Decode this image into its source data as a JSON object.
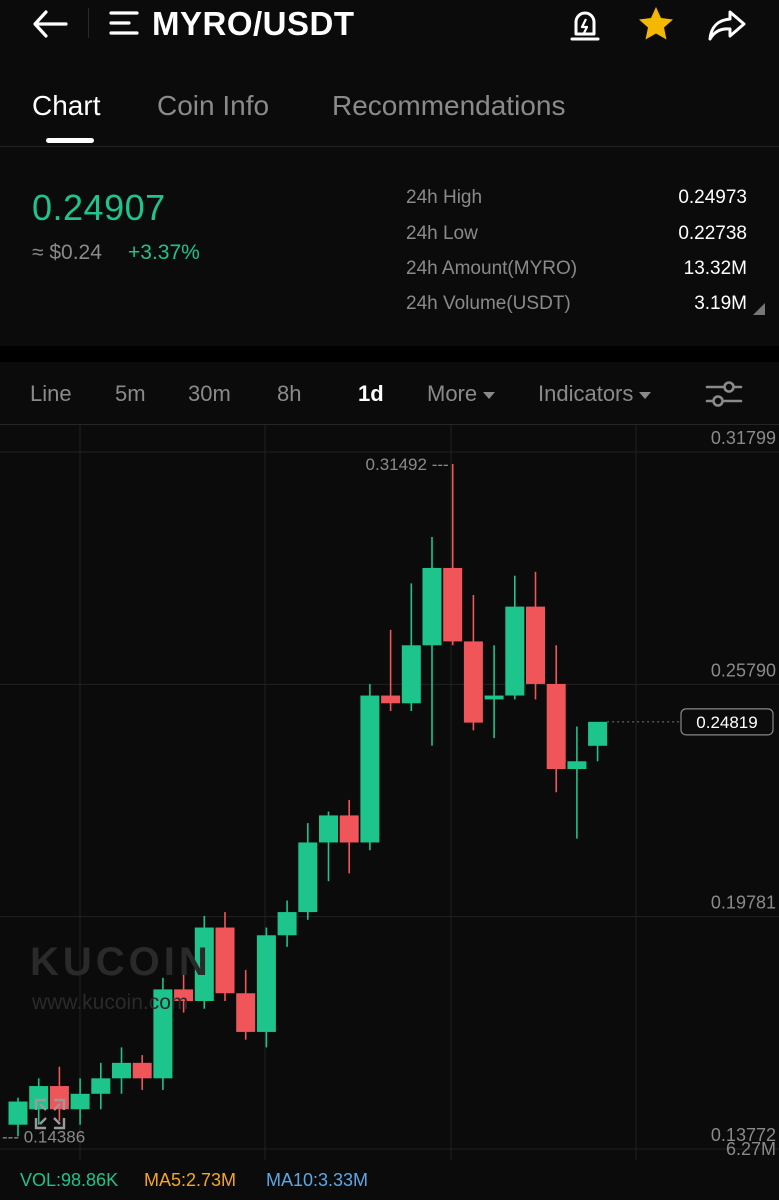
{
  "header": {
    "pair": "MYRO/USDT",
    "icons": {
      "back": "back-arrow-icon",
      "menu": "menu-icon",
      "alert": "price-alert-icon",
      "favorite": "star-icon",
      "share": "share-icon"
    },
    "favorite_color": "#f5b800"
  },
  "tabs": [
    {
      "label": "Chart",
      "active": true
    },
    {
      "label": "Coin Info",
      "active": false
    },
    {
      "label": "Recommendations",
      "active": false
    }
  ],
  "summary": {
    "price": "0.24907",
    "approx_usd": "≈ $0.24",
    "change": "+3.37%",
    "stats": [
      {
        "label": "24h High",
        "value": "0.24973"
      },
      {
        "label": "24h Low",
        "value": "0.22738"
      },
      {
        "label": "24h Amount(MYRO)",
        "value": "13.32M"
      },
      {
        "label": "24h Volume(USDT)",
        "value": "3.19M"
      }
    ]
  },
  "intervals": [
    {
      "label": "Line",
      "active": false
    },
    {
      "label": "5m",
      "active": false
    },
    {
      "label": "30m",
      "active": false
    },
    {
      "label": "8h",
      "active": false
    },
    {
      "label": "1d",
      "active": true
    }
  ],
  "more_label": "More",
  "indicators_label": "Indicators",
  "colors": {
    "up": "#1dc48b",
    "down": "#f0555a",
    "accent": "#1dc48b",
    "ma5": "#f5a623",
    "ma10": "#5aa9e6"
  },
  "watermark": {
    "logo": "KUCOIN",
    "url": "www.kucoin.com"
  },
  "chart_data": {
    "type": "candlestick",
    "y_axis_labels": [
      "0.31799",
      "0.25790",
      "0.19781",
      "0.13772"
    ],
    "ylim": [
      0.13772,
      0.31799
    ],
    "current_price_label": "0.24819",
    "high_label": "0.31492",
    "low_label": "0.14386",
    "volume_axis_label": "6.27M",
    "candles": [
      {
        "o": 0.144,
        "h": 0.151,
        "l": 0.141,
        "c": 0.15
      },
      {
        "o": 0.148,
        "h": 0.156,
        "l": 0.144,
        "c": 0.154
      },
      {
        "o": 0.154,
        "h": 0.159,
        "l": 0.145,
        "c": 0.148
      },
      {
        "o": 0.148,
        "h": 0.156,
        "l": 0.144,
        "c": 0.152
      },
      {
        "o": 0.152,
        "h": 0.16,
        "l": 0.148,
        "c": 0.156
      },
      {
        "o": 0.156,
        "h": 0.164,
        "l": 0.152,
        "c": 0.16
      },
      {
        "o": 0.16,
        "h": 0.162,
        "l": 0.153,
        "c": 0.156
      },
      {
        "o": 0.156,
        "h": 0.182,
        "l": 0.153,
        "c": 0.179
      },
      {
        "o": 0.179,
        "h": 0.186,
        "l": 0.173,
        "c": 0.176
      },
      {
        "o": 0.176,
        "h": 0.198,
        "l": 0.174,
        "c": 0.195
      },
      {
        "o": 0.195,
        "h": 0.199,
        "l": 0.176,
        "c": 0.178
      },
      {
        "o": 0.178,
        "h": 0.184,
        "l": 0.166,
        "c": 0.168
      },
      {
        "o": 0.168,
        "h": 0.195,
        "l": 0.164,
        "c": 0.193
      },
      {
        "o": 0.193,
        "h": 0.202,
        "l": 0.19,
        "c": 0.199
      },
      {
        "o": 0.199,
        "h": 0.222,
        "l": 0.197,
        "c": 0.217
      },
      {
        "o": 0.217,
        "h": 0.225,
        "l": 0.207,
        "c": 0.224
      },
      {
        "o": 0.224,
        "h": 0.228,
        "l": 0.209,
        "c": 0.217
      },
      {
        "o": 0.217,
        "h": 0.258,
        "l": 0.215,
        "c": 0.255
      },
      {
        "o": 0.255,
        "h": 0.272,
        "l": 0.251,
        "c": 0.253
      },
      {
        "o": 0.253,
        "h": 0.284,
        "l": 0.251,
        "c": 0.268
      },
      {
        "o": 0.268,
        "h": 0.296,
        "l": 0.242,
        "c": 0.288
      },
      {
        "o": 0.288,
        "h": 0.3149,
        "l": 0.268,
        "c": 0.269
      },
      {
        "o": 0.269,
        "h": 0.281,
        "l": 0.246,
        "c": 0.248
      },
      {
        "o": 0.254,
        "h": 0.268,
        "l": 0.244,
        "c": 0.255
      },
      {
        "o": 0.255,
        "h": 0.286,
        "l": 0.254,
        "c": 0.278
      },
      {
        "o": 0.278,
        "h": 0.287,
        "l": 0.254,
        "c": 0.258
      },
      {
        "o": 0.258,
        "h": 0.268,
        "l": 0.23,
        "c": 0.236
      },
      {
        "o": 0.236,
        "h": 0.247,
        "l": 0.218,
        "c": 0.238
      },
      {
        "o": 0.242,
        "h": 0.248,
        "l": 0.238,
        "c": 0.2482
      }
    ]
  },
  "indicators_row": {
    "vol": "VOL:98.86K",
    "ma5": "MA5:2.73M",
    "ma10": "MA10:3.33M"
  }
}
